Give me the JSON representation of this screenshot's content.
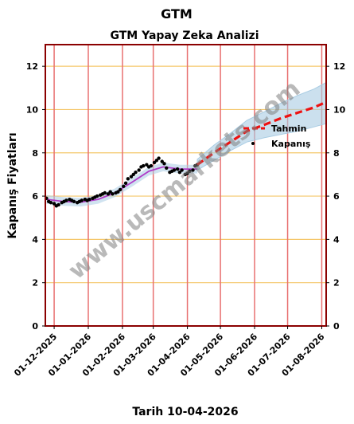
{
  "chart_data": {
    "type": "line",
    "title": "GTM",
    "subtitle": "GTM Yapay Zeka Analizi",
    "ylabel": "Kapanış Fiyatları",
    "xlabel": "Tarih 10-04-2026",
    "watermark": "www.uscmarkets.com",
    "ylim": [
      0,
      13
    ],
    "yticks": [
      0,
      2,
      4,
      6,
      8,
      10,
      12
    ],
    "xlim": [
      "2025-11-23",
      "2026-08-05"
    ],
    "xticks": [
      "01-12-2025",
      "01-01-2026",
      "01-02-2026",
      "01-03-2026",
      "01-04-2026",
      "01-05-2026",
      "01-06-2026",
      "01-07-2026",
      "01-08-2026"
    ],
    "grid": true,
    "legend_position": "right",
    "colors": {
      "border": "#8b0000",
      "vgrid": "#e87070",
      "hgrid": "#f5c76a",
      "forecast": "#ee1111",
      "band": "#a9cce3",
      "trend": "#b03cc8",
      "points": "#000000"
    },
    "series": [
      {
        "name": "Kapanış",
        "style": "scatter",
        "x": [
          "2025-11-24",
          "2025-11-26",
          "2025-11-28",
          "2025-12-01",
          "2025-12-03",
          "2025-12-05",
          "2025-12-08",
          "2025-12-10",
          "2025-12-12",
          "2025-12-15",
          "2025-12-17",
          "2025-12-19",
          "2025-12-22",
          "2025-12-24",
          "2025-12-26",
          "2025-12-29",
          "2025-12-31",
          "2026-01-02",
          "2026-01-05",
          "2026-01-07",
          "2026-01-09",
          "2026-01-12",
          "2026-01-14",
          "2026-01-16",
          "2026-01-19",
          "2026-01-21",
          "2026-01-23",
          "2026-01-26",
          "2026-01-28",
          "2026-01-30",
          "2026-02-02",
          "2026-02-04",
          "2026-02-06",
          "2026-02-09",
          "2026-02-11",
          "2026-02-13",
          "2026-02-16",
          "2026-02-18",
          "2026-02-20",
          "2026-02-23",
          "2026-02-25",
          "2026-02-27",
          "2026-03-02",
          "2026-03-04",
          "2026-03-06",
          "2026-03-09",
          "2026-03-11",
          "2026-03-13",
          "2026-03-16",
          "2026-03-18",
          "2026-03-20",
          "2026-03-23",
          "2026-03-25",
          "2026-03-27",
          "2026-03-30",
          "2026-04-01",
          "2026-04-03",
          "2026-04-06",
          "2026-04-08",
          "2026-04-10"
        ],
        "y": [
          5.9,
          5.75,
          5.7,
          5.65,
          5.55,
          5.6,
          5.7,
          5.75,
          5.8,
          5.85,
          5.8,
          5.75,
          5.7,
          5.75,
          5.8,
          5.85,
          5.8,
          5.85,
          5.9,
          5.95,
          6.0,
          6.05,
          6.1,
          6.15,
          6.1,
          6.2,
          6.1,
          6.15,
          6.2,
          6.3,
          6.45,
          6.6,
          6.8,
          6.9,
          7.0,
          7.1,
          7.2,
          7.35,
          7.4,
          7.45,
          7.35,
          7.4,
          7.55,
          7.65,
          7.75,
          7.6,
          7.5,
          7.3,
          7.1,
          7.15,
          7.2,
          7.25,
          7.1,
          7.2,
          7.0,
          7.05,
          7.15,
          7.2,
          7.4,
          7.45
        ]
      },
      {
        "name": "",
        "style": "trend",
        "x": [
          "2025-11-24",
          "2025-12-10",
          "2025-12-25",
          "2026-01-10",
          "2026-01-25",
          "2026-02-10",
          "2026-02-25",
          "2026-03-10",
          "2026-03-25",
          "2026-04-10"
        ],
        "y": [
          5.85,
          5.75,
          5.72,
          5.85,
          6.15,
          6.65,
          7.15,
          7.35,
          7.25,
          7.25
        ]
      },
      {
        "name": "Tahmin",
        "style": "forecast",
        "x": [
          "2026-04-10",
          "2026-04-25",
          "2026-05-10",
          "2026-05-25",
          "2026-06-10",
          "2026-06-25",
          "2026-07-10",
          "2026-07-25",
          "2026-08-05"
        ],
        "y": [
          7.45,
          8.0,
          8.5,
          9.0,
          9.3,
          9.6,
          9.85,
          10.1,
          10.35
        ],
        "band_low": [
          7.2,
          7.65,
          8.1,
          8.5,
          8.7,
          8.85,
          9.0,
          9.2,
          9.35
        ],
        "band_high": [
          7.7,
          8.35,
          8.9,
          9.5,
          9.9,
          10.3,
          10.65,
          10.95,
          11.25
        ]
      }
    ]
  }
}
